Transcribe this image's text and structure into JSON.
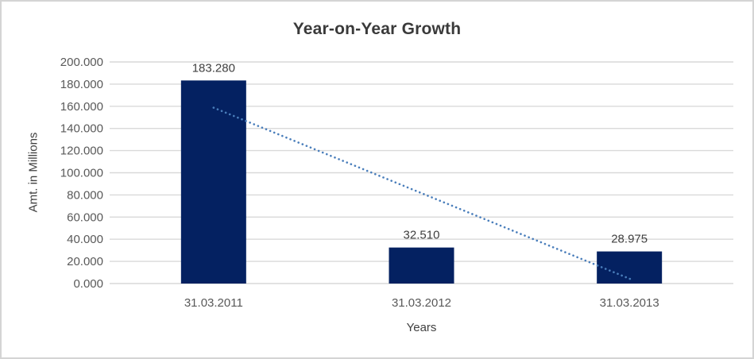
{
  "chart_data": {
    "type": "bar",
    "title": "Year-on-Year Growth",
    "xlabel": "Years",
    "ylabel": "Amt. in Millions",
    "categories": [
      "31.03.2011",
      "31.03.2012",
      "31.03.2013"
    ],
    "values": [
      183.28,
      32.51,
      28.975
    ],
    "value_labels": [
      "183.280",
      "32.510",
      "28.975"
    ],
    "y_ticks": [
      "200.000",
      "180.000",
      "160.000",
      "140.000",
      "120.000",
      "100.000",
      "80.000",
      "60.000",
      "40.000",
      "20.000",
      "0.000"
    ],
    "ylim": [
      0,
      200
    ],
    "grid": true,
    "legend": "none",
    "bar_color": "#042161",
    "trendline": {
      "type": "linear",
      "style": "dotted",
      "color": "#4a7ebb"
    },
    "colors": {
      "gridline": "#d9d9d9",
      "frame_border": "#d4d4d4",
      "title_text": "#3a3a3a",
      "axis_text": "#595959",
      "label_text": "#404040",
      "background": "#ffffff"
    }
  }
}
